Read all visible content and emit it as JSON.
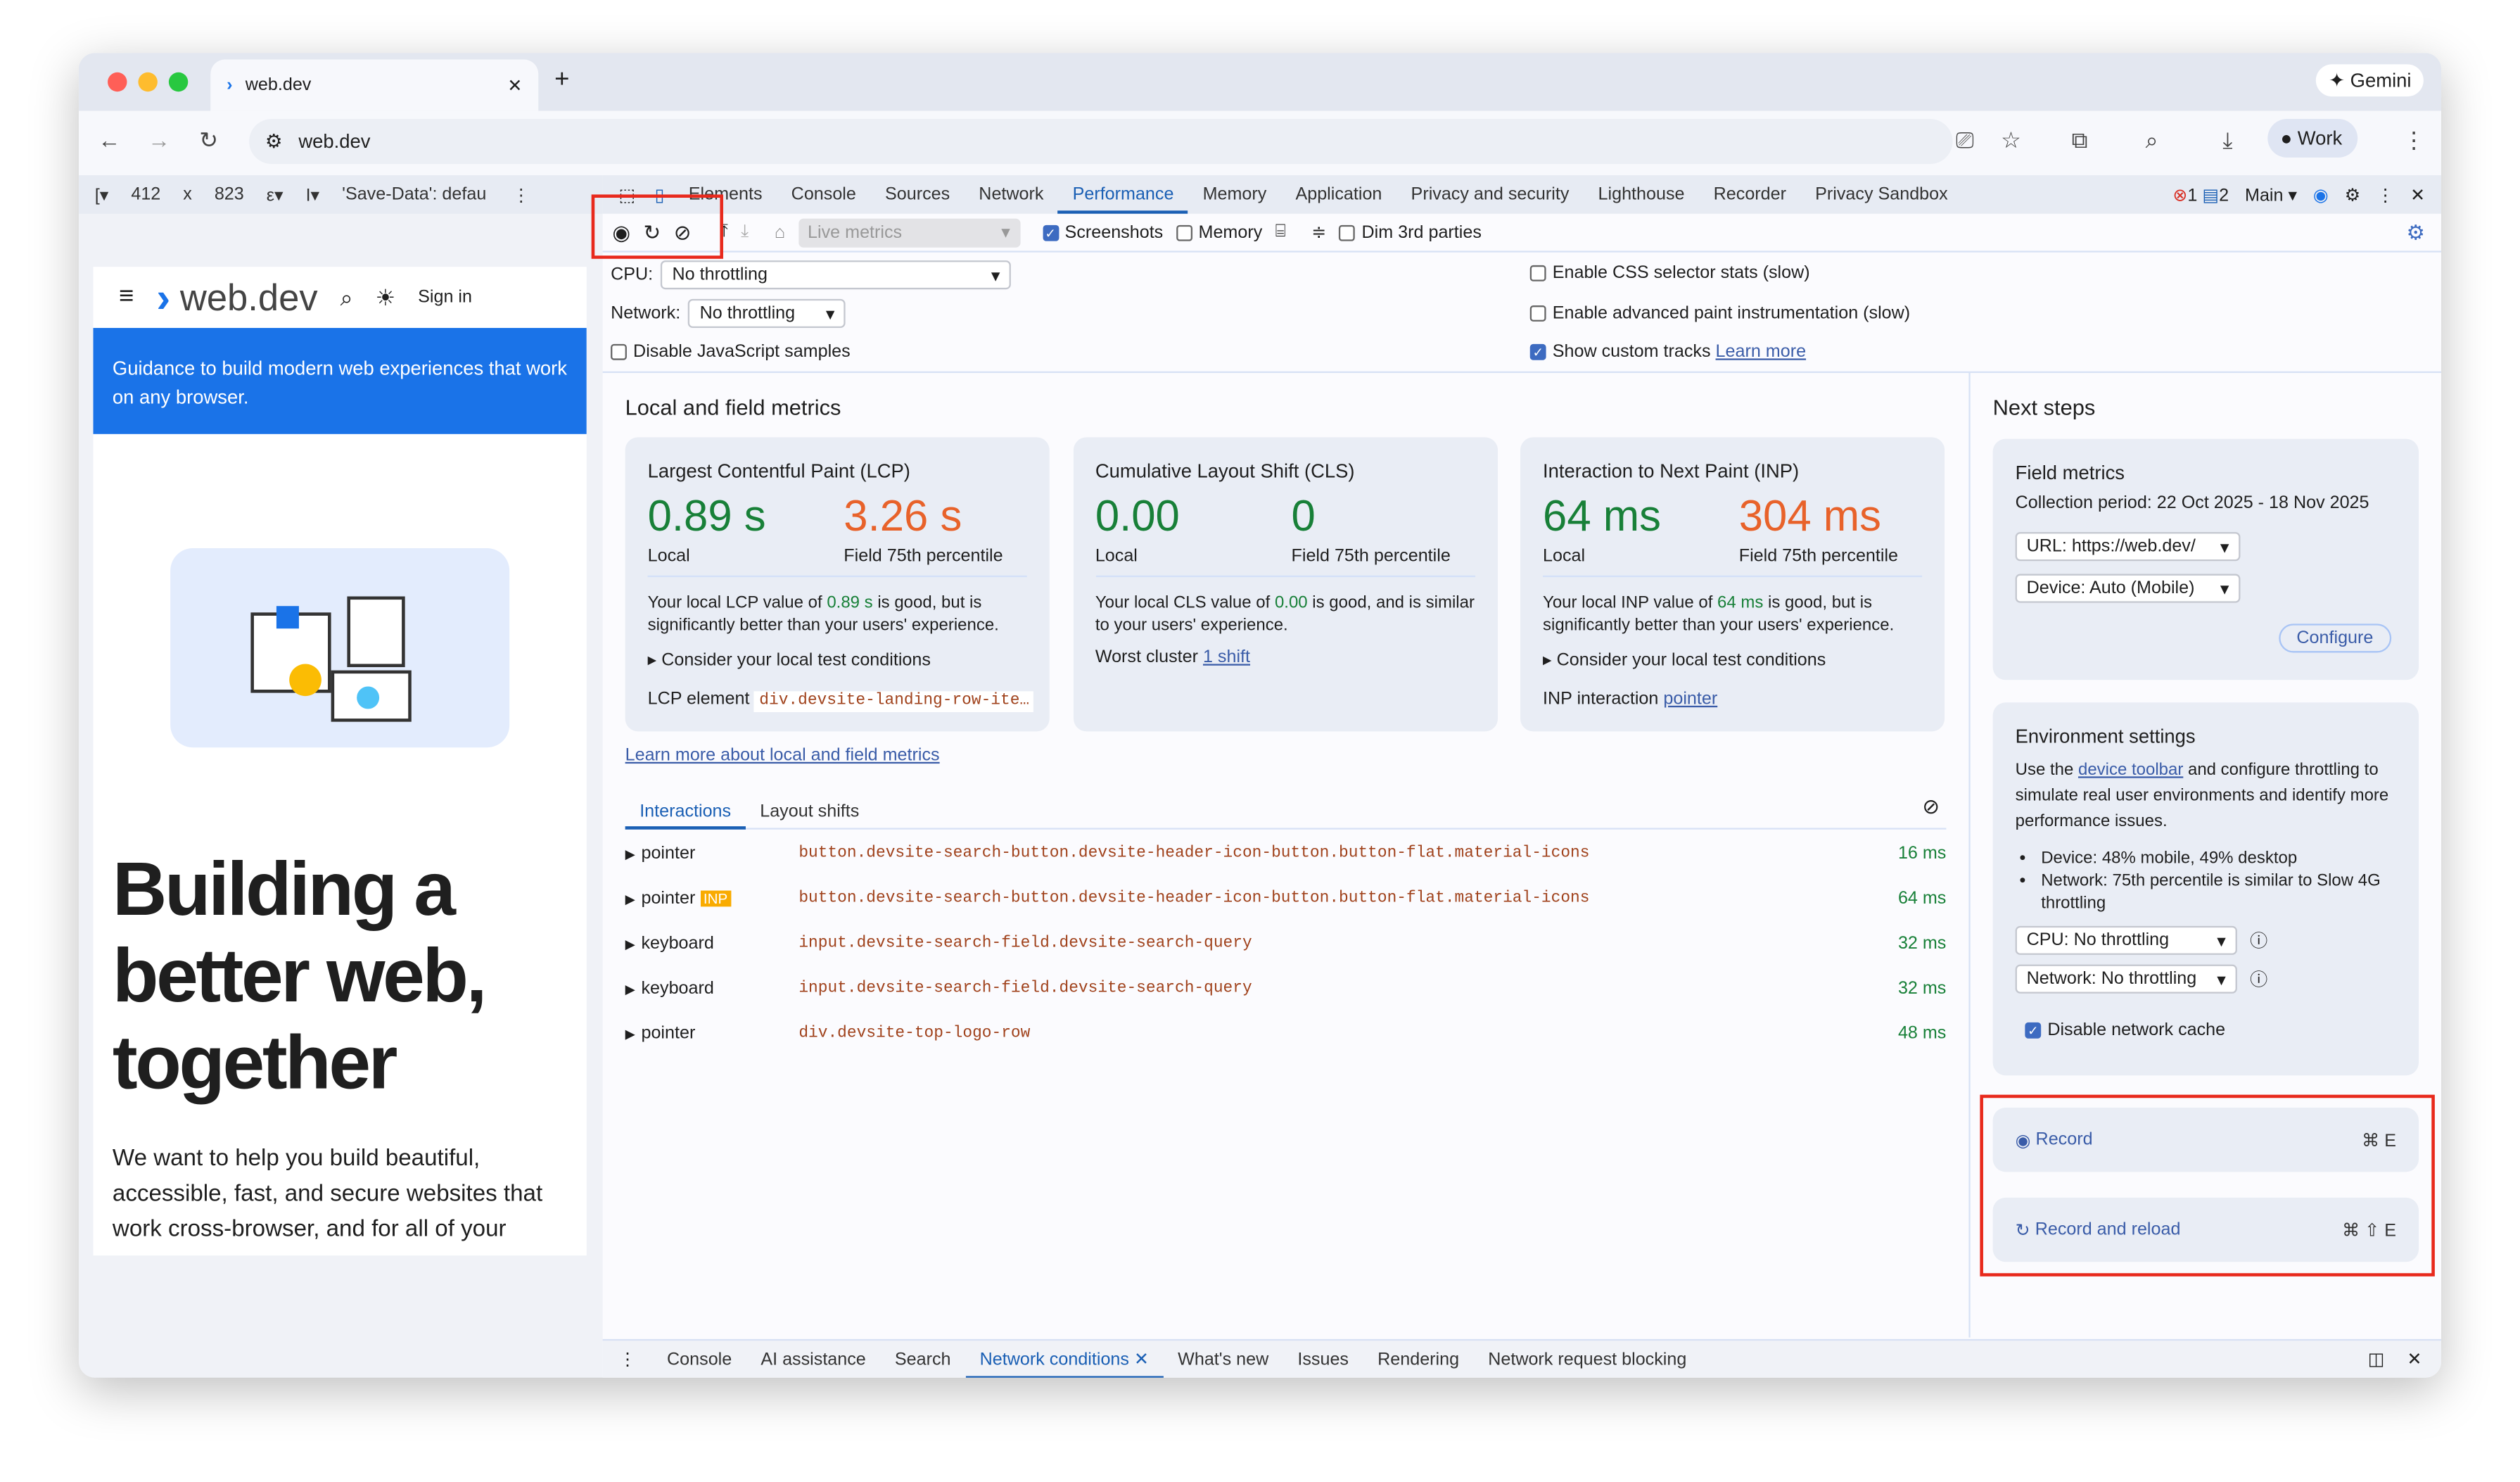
{
  "browser": {
    "tab_title": "web.dev",
    "address": "web.dev",
    "gemini_label": "Gemini",
    "profile_label": "Work"
  },
  "device_toolbar": {
    "width": "412",
    "x": "x",
    "height": "823",
    "network_label": "'Save-Data': defau"
  },
  "devtools": {
    "tabs": [
      "Elements",
      "Console",
      "Sources",
      "Network",
      "Performance",
      "Memory",
      "Application",
      "Privacy and security",
      "Lighthouse",
      "Recorder",
      "Privacy Sandbox"
    ],
    "active_tab": "Performance",
    "errors": "1",
    "messages": "2",
    "context": "Main"
  },
  "perf_toolbar": {
    "live_metrics": "Live metrics",
    "screenshots": "Screenshots",
    "memory": "Memory",
    "dim_3rd": "Dim 3rd parties"
  },
  "settings": {
    "cpu_label": "CPU:",
    "cpu_value": "No throttling",
    "network_label": "Network:",
    "network_value": "No throttling",
    "disable_js": "Disable JavaScript samples",
    "css_stats": "Enable CSS selector stats (slow)",
    "paint": "Enable advanced paint instrumentation (slow)",
    "custom_tracks": "Show custom tracks",
    "learn_more": "Learn more"
  },
  "metrics": {
    "heading": "Local and field metrics",
    "local_label": "Local",
    "field_label": "Field 75th percentile",
    "lcp": {
      "title": "Largest Contentful Paint (LCP)",
      "local": "0.89 s",
      "field": "3.26 s",
      "desc1": "Your local LCP value of ",
      "val": "0.89 s",
      "desc2": " is good, but is significantly better than your users' experience.",
      "consider": "Consider your local test conditions",
      "element_label": "LCP element",
      "element": "div.devsite-landing-row-ite…"
    },
    "cls": {
      "title": "Cumulative Layout Shift (CLS)",
      "local": "0.00",
      "field": "0",
      "desc1": "Your local CLS value of ",
      "val": "0.00",
      "desc2": " is good, and is similar to your users' experience.",
      "worst_label": "Worst cluster",
      "worst": "1 shift"
    },
    "inp": {
      "title": "Interaction to Next Paint (INP)",
      "local": "64 ms",
      "field": "304 ms",
      "desc1": "Your local INP value of ",
      "val": "64 ms",
      "desc2": " is good, but is significantly better than your users' experience.",
      "consider": "Consider your local test conditions",
      "interaction_label": "INP interaction",
      "interaction": "pointer"
    },
    "learn_more": "Learn more about local and field metrics",
    "colors": {
      "good": "#188038",
      "poor": "#e8622a"
    }
  },
  "interactions": {
    "tabs": [
      "Interactions",
      "Layout shifts"
    ],
    "rows": [
      {
        "type": "pointer",
        "badge": "",
        "selector": "button.devsite-search-button.devsite-header-icon-button.button-flat.material-icons",
        "time": "16 ms"
      },
      {
        "type": "pointer",
        "badge": "INP",
        "selector": "button.devsite-search-button.devsite-header-icon-button.button-flat.material-icons",
        "time": "64 ms"
      },
      {
        "type": "keyboard",
        "badge": "",
        "selector": "input.devsite-search-field.devsite-search-query",
        "time": "32 ms"
      },
      {
        "type": "keyboard",
        "badge": "",
        "selector": "input.devsite-search-field.devsite-search-query",
        "time": "32 ms"
      },
      {
        "type": "pointer",
        "badge": "",
        "selector": "div.devsite-top-logo-row",
        "time": "48 ms"
      }
    ]
  },
  "next_steps": {
    "heading": "Next steps",
    "field": {
      "title": "Field metrics",
      "period": "Collection period: 22 Oct 2025 - 18 Nov 2025",
      "url": "URL: https://web.dev/",
      "device": "Device: Auto (Mobile)",
      "configure": "Configure"
    },
    "env": {
      "title": "Environment settings",
      "text1": "Use the ",
      "link": "device toolbar",
      "text2": " and configure throttling to simulate real user environments and identify more performance issues.",
      "bullets": [
        "Device: 48% mobile, 49% desktop",
        "Network: 75th percentile is similar to Slow 4G throttling"
      ],
      "cpu": "CPU: No throttling",
      "network": "Network: No throttling",
      "cache": "Disable network cache"
    },
    "record": "Record",
    "record_shortcut": "⌘ E",
    "reload": "Record and reload",
    "reload_shortcut": "⌘ ⇧ E"
  },
  "page": {
    "logo": "web.dev",
    "sign_in": "Sign in",
    "banner": "Guidance to build modern web experiences that work on any browser.",
    "headline": "Building a better web, together",
    "body": "We want to help you build beautiful, accessible, fast, and secure websites that work cross-browser, and for all of your"
  },
  "drawer": {
    "tabs": [
      "Console",
      "AI assistance",
      "Search",
      "Network conditions",
      "What's new",
      "Issues",
      "Rendering",
      "Network request blocking"
    ],
    "active": "Network conditions"
  }
}
